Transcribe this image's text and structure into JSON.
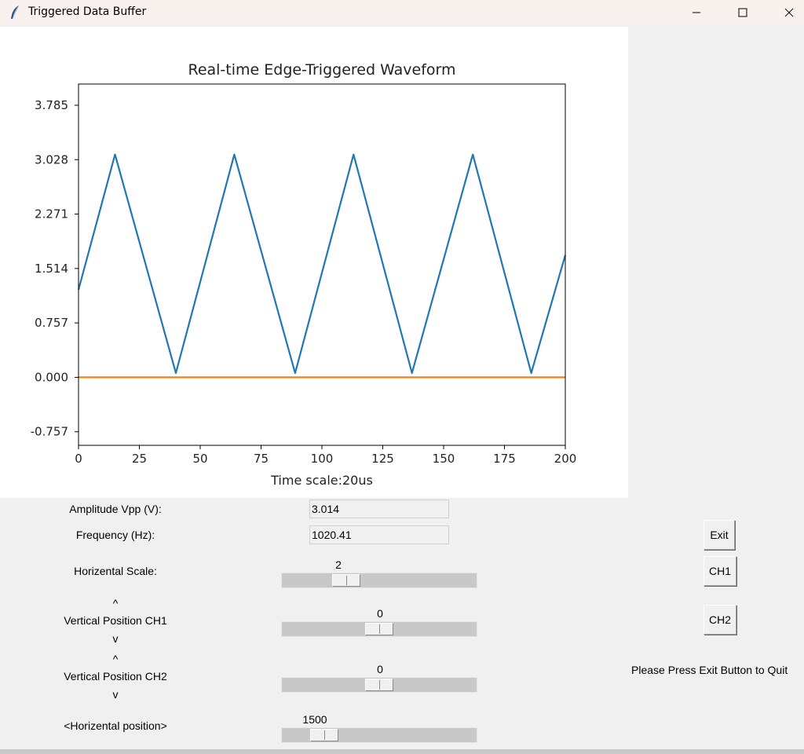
{
  "window": {
    "title": "Triggered Data Buffer"
  },
  "chart_data": {
    "type": "line",
    "title": "Real-time Edge-Triggered Waveform",
    "xlabel": "Time scale:20us",
    "ylabel": "",
    "xlim": [
      0,
      200
    ],
    "ylim": [
      -0.946,
      4.08
    ],
    "xticks": [
      "0",
      "25",
      "50",
      "75",
      "100",
      "125",
      "150",
      "175",
      "200"
    ],
    "yticks": [
      "3.785",
      "3.028",
      "2.271",
      "1.514",
      "0.757",
      "0.000",
      "-0.757"
    ],
    "grid": false,
    "series": [
      {
        "color": "#1f77b4",
        "x": [
          0,
          15,
          40,
          64,
          89,
          113,
          137,
          162,
          186,
          200
        ],
        "y": [
          1.22,
          3.1,
          0.06,
          3.1,
          0.06,
          3.1,
          0.06,
          3.1,
          0.06,
          1.7
        ]
      },
      {
        "color": "#ff7f0e",
        "x": [
          0,
          200
        ],
        "y": [
          0.0,
          0.0
        ]
      }
    ]
  },
  "controls": {
    "amplitude_label": "Amplitude Vpp (V):",
    "amplitude_value": "3.014",
    "frequency_label": "Frequency (Hz):",
    "frequency_value": "1020.41",
    "hscale_label": "Horizental Scale:",
    "hscale_value": "2",
    "hscale_level": 0.3,
    "vpos1_up": "^",
    "vpos1_label": "Vertical Position CH1",
    "vpos1_down": "v",
    "vpos1_value": "0",
    "vpos1_level": 0.5,
    "vpos2_up": "^",
    "vpos2_label": "Vertical Position CH2",
    "vpos2_down": "v",
    "vpos2_value": "0",
    "vpos2_level": 0.5,
    "hpos_label": "<Horizental position>",
    "hpos_value": "1500",
    "hpos_level": 0.17
  },
  "buttons": {
    "exit": "Exit",
    "ch1": "CH1",
    "ch2": "CH2"
  },
  "status": {
    "exit_hint": "Please Press Exit Button to Quit"
  }
}
